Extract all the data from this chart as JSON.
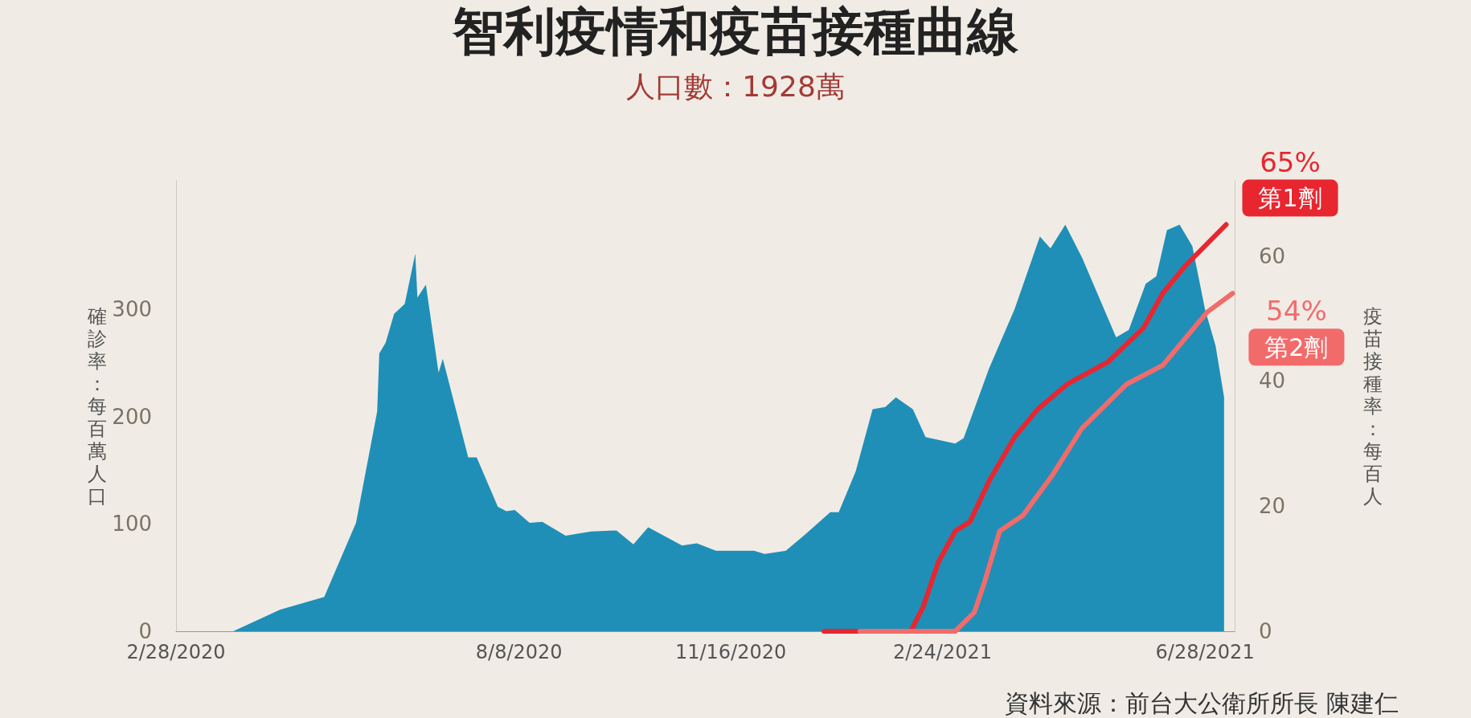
{
  "chart_data": {
    "type": "area",
    "title": "智利疫情和疫苗接種曲線",
    "subtitle": "人口數：1928萬",
    "ylabel": "確診率：每百萬人口",
    "y2label": "疫苗接種率：每百人",
    "annotations": [
      "資料來源：前台大公衛所所長 陳建仁"
    ],
    "xlim": [
      "2020-02-28",
      "2021-07-12"
    ],
    "xticks": [
      {
        "value": "2020-02-28",
        "label": "2/28/2020"
      },
      {
        "value": "2020-08-08",
        "label": "8/8/2020"
      },
      {
        "value": "2020-11-16",
        "label": "11/16/2020"
      },
      {
        "value": "2021-02-24",
        "label": "2/24/2021"
      },
      {
        "value": "2021-06-28",
        "label": "6/28/2021"
      }
    ],
    "ylim": [
      0,
      420
    ],
    "yticks": [
      0,
      100,
      200,
      300
    ],
    "y2lim": [
      0,
      72
    ],
    "y2ticks": [
      0,
      20,
      40,
      60
    ],
    "grid": false,
    "legend": false,
    "series": [
      {
        "type": "area",
        "color": "#1f8fb8",
        "x": [
          "2020-02-28",
          "2020-03-26",
          "2020-04-17",
          "2020-05-08",
          "2020-05-23",
          "2020-06-02",
          "2020-06-03",
          "2020-06-06",
          "2020-06-10",
          "2020-06-15",
          "2020-06-20",
          "2020-06-21",
          "2020-06-25",
          "2020-07-01",
          "2020-07-03",
          "2020-07-15",
          "2020-07-19",
          "2020-07-29",
          "2020-08-02",
          "2020-08-06",
          "2020-08-13",
          "2020-08-19",
          "2020-08-30",
          "2020-09-11",
          "2020-09-23",
          "2020-10-01",
          "2020-10-08",
          "2020-10-24",
          "2020-10-31",
          "2020-11-09",
          "2020-11-27",
          "2020-12-02",
          "2020-12-12",
          "2020-12-21",
          "2021-01-02",
          "2021-01-06",
          "2021-01-14",
          "2021-01-22",
          "2021-01-28",
          "2021-02-02",
          "2021-02-10",
          "2021-02-16",
          "2021-03-02",
          "2021-03-06",
          "2021-03-18",
          "2021-03-30",
          "2021-04-11",
          "2021-04-16",
          "2021-04-23",
          "2021-05-01",
          "2021-05-17",
          "2021-05-23",
          "2021-05-31",
          "2021-06-05",
          "2021-06-10",
          "2021-06-16",
          "2021-06-22",
          "2021-06-28",
          "2021-07-03",
          "2021-07-07"
        ],
        "values": [
          0,
          0,
          20,
          32,
          101,
          205,
          259,
          269,
          296,
          305,
          352,
          311,
          323,
          241,
          254,
          162,
          162,
          116,
          112,
          113,
          101,
          102,
          89,
          93,
          94,
          81,
          97,
          80,
          82,
          75,
          75,
          72,
          75,
          90,
          111,
          111,
          149,
          207,
          209,
          218,
          207,
          181,
          175,
          180,
          245,
          300,
          368,
          357,
          379,
          348,
          274,
          281,
          324,
          331,
          374,
          379,
          359,
          300,
          266,
          218
        ]
      },
      {
        "type": "line",
        "name": "第1劑",
        "axis": "y2",
        "color": "#e8262f",
        "x": [
          "2020-12-30",
          "2021-02-09",
          "2021-02-15",
          "2021-02-22",
          "2021-03-02",
          "2021-03-09",
          "2021-03-18",
          "2021-03-30",
          "2021-04-10",
          "2021-04-24",
          "2021-05-13",
          "2021-05-30",
          "2021-06-08",
          "2021-06-19",
          "2021-07-08"
        ],
        "values": [
          0,
          0,
          4,
          11,
          16,
          17.5,
          24,
          31,
          35.5,
          39.5,
          43,
          48.5,
          54,
          58.5,
          65
        ],
        "value_labels": [
          null,
          null,
          null,
          null,
          null,
          null,
          null,
          null,
          null,
          null,
          null,
          null,
          null,
          null,
          "65%"
        ]
      },
      {
        "type": "line",
        "name": "第2劑",
        "axis": "y2",
        "color": "#f26b6b",
        "x": [
          "2021-01-16",
          "2021-03-02",
          "2021-03-11",
          "2021-03-16",
          "2021-03-23",
          "2021-04-03",
          "2021-04-17",
          "2021-05-01",
          "2021-05-22",
          "2021-06-08",
          "2021-06-29",
          "2021-07-11"
        ],
        "values": [
          0,
          0,
          3,
          8,
          16,
          18.5,
          25,
          32.5,
          39.5,
          42.5,
          51,
          54
        ],
        "value_labels": [
          null,
          null,
          null,
          null,
          null,
          null,
          null,
          null,
          null,
          null,
          null,
          "54%"
        ]
      }
    ]
  }
}
